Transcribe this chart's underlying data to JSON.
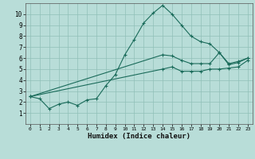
{
  "xlabel": "Humidex (Indice chaleur)",
  "bg_color": "#b8ddd8",
  "grid_color": "#90c0b8",
  "line_color": "#1a6b5a",
  "xlim": [
    -0.5,
    23.5
  ],
  "ylim": [
    0,
    11
  ],
  "xticks": [
    0,
    1,
    2,
    3,
    4,
    5,
    6,
    7,
    8,
    9,
    10,
    11,
    12,
    13,
    14,
    15,
    16,
    17,
    18,
    19,
    20,
    21,
    22,
    23
  ],
  "yticks": [
    1,
    2,
    3,
    4,
    5,
    6,
    7,
    8,
    9,
    10
  ],
  "line1_x": [
    0,
    1,
    2,
    3,
    4,
    5,
    6,
    7,
    8,
    9,
    10,
    11,
    12,
    13,
    14,
    15,
    16,
    17,
    18,
    19,
    20,
    21,
    22,
    23
  ],
  "line1_y": [
    2.5,
    2.3,
    1.4,
    1.8,
    2.0,
    1.7,
    2.2,
    2.3,
    3.5,
    4.5,
    6.3,
    7.7,
    9.2,
    10.1,
    10.8,
    10.0,
    9.0,
    8.0,
    7.5,
    7.3,
    6.5,
    5.5,
    5.7,
    6.0
  ],
  "line2_x": [
    0,
    14,
    15,
    16,
    17,
    18,
    19,
    20,
    21,
    22,
    23
  ],
  "line2_y": [
    2.5,
    6.3,
    6.2,
    5.8,
    5.5,
    5.5,
    5.5,
    6.5,
    5.4,
    5.6,
    6.0
  ],
  "line3_x": [
    0,
    14,
    15,
    16,
    17,
    18,
    19,
    20,
    21,
    22,
    23
  ],
  "line3_y": [
    2.5,
    5.0,
    5.2,
    4.8,
    4.8,
    4.8,
    5.0,
    5.0,
    5.1,
    5.2,
    5.8
  ]
}
